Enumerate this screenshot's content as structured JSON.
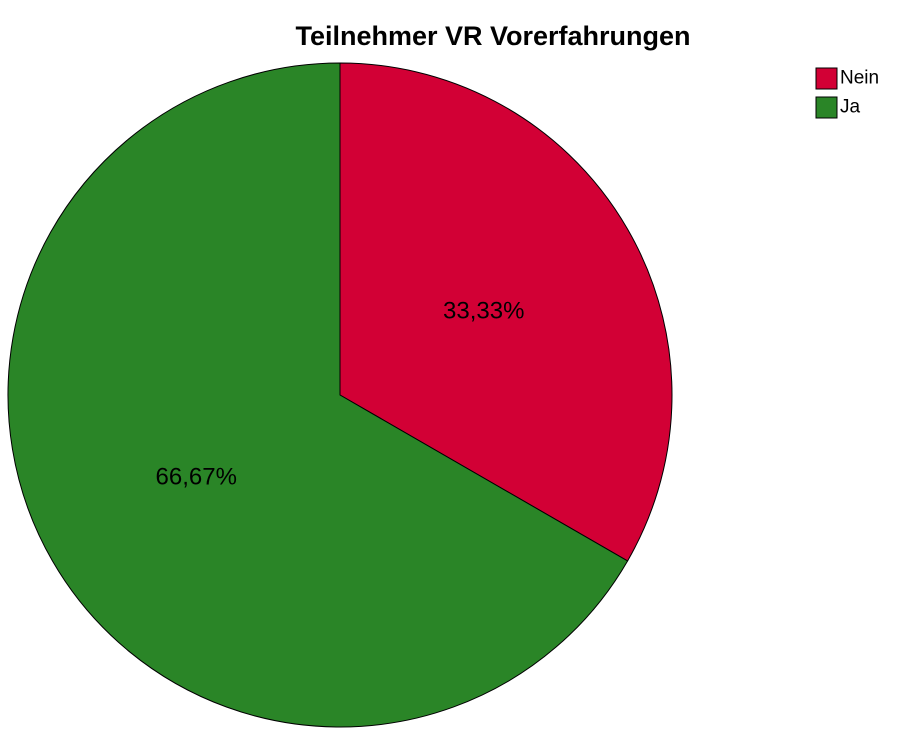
{
  "chart_data": {
    "type": "pie",
    "title": "Teilnehmer VR Vorerfahrungen",
    "slices": [
      {
        "name": "Nein",
        "value": 33.33,
        "label": "33,33%",
        "color": "#d20035"
      },
      {
        "name": "Ja",
        "value": 66.67,
        "label": "66,67%",
        "color": "#2a8527"
      }
    ],
    "legend": {
      "placement": "top-right",
      "entries": [
        "Nein",
        "Ja"
      ]
    },
    "start_angle": "12 o'clock",
    "direction": "clockwise"
  }
}
